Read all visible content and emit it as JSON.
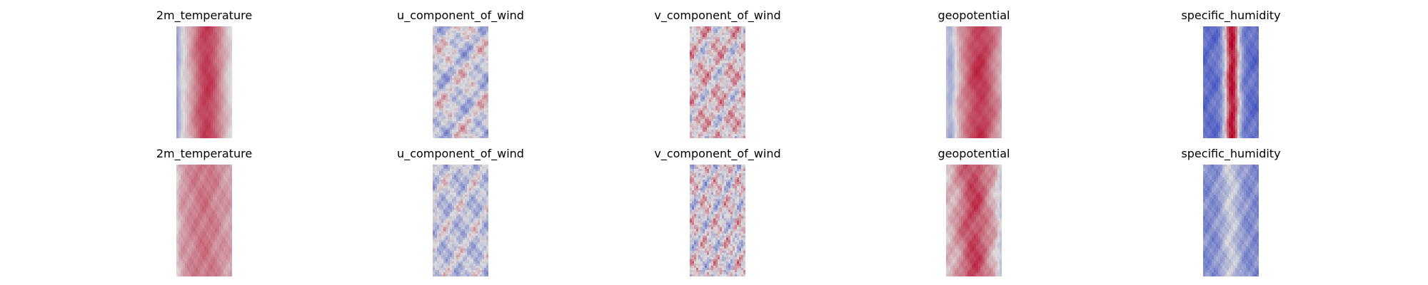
{
  "chart_data": [
    {
      "type": "heatmap",
      "title": "2m_temperature",
      "colormap": "coolwarm",
      "row": 1
    },
    {
      "type": "heatmap",
      "title": "u_component_of_wind",
      "colormap": "coolwarm",
      "row": 1
    },
    {
      "type": "heatmap",
      "title": "v_component_of_wind",
      "colormap": "coolwarm",
      "row": 1
    },
    {
      "type": "heatmap",
      "title": "geopotential",
      "colormap": "coolwarm",
      "row": 1
    },
    {
      "type": "heatmap",
      "title": "specific_humidity",
      "colormap": "coolwarm",
      "row": 1
    },
    {
      "type": "heatmap",
      "title": "2m_temperature",
      "colormap": "coolwarm",
      "row": 2
    },
    {
      "type": "heatmap",
      "title": "u_component_of_wind",
      "colormap": "coolwarm",
      "row": 2
    },
    {
      "type": "heatmap",
      "title": "v_component_of_wind",
      "colormap": "coolwarm",
      "row": 2
    },
    {
      "type": "heatmap",
      "title": "geopotential",
      "colormap": "coolwarm",
      "row": 2
    },
    {
      "type": "heatmap",
      "title": "specific_humidity",
      "colormap": "coolwarm",
      "row": 2
    }
  ],
  "colors": {
    "cold": "#3b4cc0",
    "neutral": "#dddddd",
    "warm": "#b40426"
  }
}
